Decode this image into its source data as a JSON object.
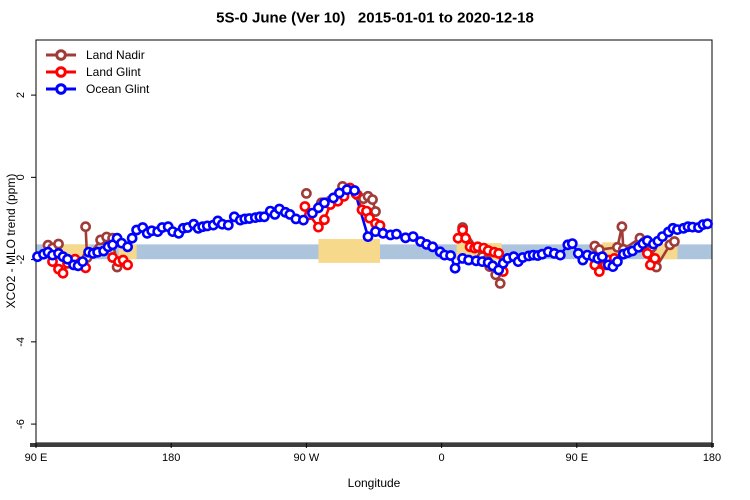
{
  "title": "5S-0 June (Ver 10)   2015-01-01 to 2020-12-18",
  "chart_data": {
    "type": "line",
    "title": "5S-0 June (Ver 10)   2015-01-01 to 2020-12-18",
    "xlabel": "Longitude",
    "ylabel": "XCO2 - MLO trend (ppm)",
    "grid": false,
    "legend_position": "top-left",
    "x_axis": {
      "range": [
        0,
        450
      ],
      "tick_positions": [
        0,
        90,
        180,
        270,
        360,
        450
      ],
      "tick_labels": [
        "90 E",
        "180",
        "90 W",
        "0",
        "90 E",
        "180"
      ],
      "note": "wrapped longitude axis: 90E to 180 to 90W to 0 to 90E to 180"
    },
    "y_axis": {
      "range": [
        -6.46,
        3.34
      ],
      "tick_values": [
        2,
        0,
        -2,
        -4,
        -6
      ],
      "tick_labels": [
        "2",
        "0",
        "-2",
        "-4",
        "-6"
      ]
    },
    "bands": {
      "blue_band": {
        "color": "#ADC4DD",
        "x_from": 0,
        "x_to": 450,
        "y_from": -1.63,
        "y_to": -1.99
      },
      "yellow_color": "#F6D98A",
      "yellow_segments": [
        {
          "x_from": 17,
          "x_to": 36,
          "y_from": -1.63,
          "y_to": -1.99
        },
        {
          "x_from": 55,
          "x_to": 67,
          "y_from": -1.63,
          "y_to": -1.99
        },
        {
          "x_from": 188,
          "x_to": 229,
          "y_from": -1.5,
          "y_to": -2.08
        },
        {
          "x_from": 280,
          "x_to": 310,
          "y_from": -1.6,
          "y_to": -2.02
        },
        {
          "x_from": 377,
          "x_to": 389,
          "y_from": -1.58,
          "y_to": -2.0
        },
        {
          "x_from": 410,
          "x_to": 427,
          "y_from": -1.63,
          "y_to": -1.99
        }
      ]
    },
    "series": [
      {
        "name": "Land Nadir",
        "color": "#A03C38",
        "segments": [
          [
            [
              8,
              -1.65
            ],
            [
              11,
              -1.72
            ],
            [
              15,
              -1.62
            ]
          ],
          [
            [
              33,
              -1.2
            ],
            [
              34,
              -1.95
            ],
            [
              43,
              -1.52
            ],
            [
              47,
              -1.45
            ],
            [
              51,
              -1.48
            ],
            [
              54,
              -2.18
            ]
          ],
          [
            [
              180,
              -0.39
            ]
          ],
          [
            [
              190,
              -0.62
            ],
            [
              196,
              -0.57
            ],
            [
              199,
              -0.49
            ],
            [
              204,
              -0.22
            ],
            [
              214,
              -0.43
            ],
            [
              218,
              -0.52
            ],
            [
              221,
              -0.46
            ],
            [
              224,
              -0.54
            ],
            [
              226,
              -0.83
            ]
          ],
          [
            [
              284,
              -1.22
            ],
            [
              297,
              -1.93
            ],
            [
              300,
              -2.01
            ],
            [
              302,
              -2.17
            ],
            [
              306,
              -2.37
            ],
            [
              309,
              -2.58
            ]
          ],
          [
            [
              372,
              -1.67
            ],
            [
              375,
              -1.76
            ],
            [
              387,
              -1.7
            ],
            [
              390,
              -1.2
            ],
            [
              391,
              -1.75
            ],
            [
              402,
              -1.48
            ],
            [
              405,
              -1.57
            ],
            [
              410,
              -1.7
            ],
            [
              413,
              -2.18
            ],
            [
              422,
              -1.64
            ],
            [
              425,
              -1.56
            ]
          ]
        ]
      },
      {
        "name": "Land Glint",
        "color": "#FF0000",
        "segments": [
          [
            [
              11,
              -2.05
            ],
            [
              15,
              -2.23
            ],
            [
              18,
              -2.33
            ],
            [
              21,
              -2.09
            ],
            [
              26,
              -1.99
            ],
            [
              29,
              -2.09
            ],
            [
              33,
              -2.2
            ]
          ],
          [
            [
              51,
              -1.95
            ],
            [
              55,
              -2.05
            ],
            [
              58,
              -2.01
            ],
            [
              61,
              -2.13
            ]
          ],
          [
            [
              179,
              -0.71
            ],
            [
              182,
              -0.91
            ],
            [
              188,
              -1.21
            ],
            [
              192,
              -1.03
            ],
            [
              196,
              -0.66
            ],
            [
              201,
              -0.58
            ],
            [
              205,
              -0.46
            ],
            [
              209,
              -0.26
            ],
            [
              213,
              -0.4
            ],
            [
              217,
              -0.79
            ],
            [
              220,
              -0.82
            ],
            [
              222,
              -0.99
            ],
            [
              226,
              -1.12
            ],
            [
              229,
              -1.17
            ]
          ],
          [
            [
              281,
              -1.48
            ],
            [
              284,
              -1.28
            ],
            [
              286,
              -1.48
            ],
            [
              289,
              -1.69
            ],
            [
              292,
              -1.72
            ],
            [
              294,
              -1.69
            ],
            [
              298,
              -1.72
            ],
            [
              301,
              -1.78
            ],
            [
              305,
              -1.82
            ],
            [
              308,
              -1.85
            ],
            [
              311,
              -2.29
            ]
          ],
          [
            [
              372,
              -2.13
            ],
            [
              375,
              -2.29
            ],
            [
              379,
              -2.13
            ],
            [
              381,
              -2.01
            ],
            [
              385,
              -1.97
            ]
          ],
          [
            [
              403,
              -1.69
            ],
            [
              407,
              -1.85
            ],
            [
              409,
              -2.13
            ],
            [
              412,
              -1.97
            ]
          ]
        ]
      },
      {
        "name": "Ocean Glint",
        "color": "#0000FF",
        "segments": [
          [
            [
              1,
              -1.93
            ],
            [
              5,
              -1.87
            ],
            [
              8,
              -1.82
            ],
            [
              11,
              -1.89
            ],
            [
              15,
              -1.85
            ],
            [
              18,
              -1.93
            ],
            [
              21,
              -1.99
            ],
            [
              25,
              -2.13
            ],
            [
              28,
              -2.15
            ],
            [
              31,
              -2.05
            ],
            [
              35,
              -1.82
            ],
            [
              38,
              -1.85
            ],
            [
              41,
              -1.82
            ],
            [
              45,
              -1.79
            ],
            [
              48,
              -1.69
            ],
            [
              51,
              -1.64
            ],
            [
              54,
              -1.48
            ],
            [
              57,
              -1.6
            ],
            [
              61,
              -1.69
            ],
            [
              64,
              -1.48
            ],
            [
              67,
              -1.28
            ],
            [
              71,
              -1.22
            ],
            [
              74,
              -1.36
            ],
            [
              77,
              -1.3
            ],
            [
              81,
              -1.32
            ],
            [
              84,
              -1.22
            ],
            [
              88,
              -1.2
            ],
            [
              91,
              -1.32
            ],
            [
              95,
              -1.36
            ],
            [
              98,
              -1.24
            ],
            [
              101,
              -1.22
            ],
            [
              105,
              -1.14
            ],
            [
              108,
              -1.24
            ],
            [
              111,
              -1.2
            ],
            [
              114,
              -1.18
            ],
            [
              118,
              -1.16
            ],
            [
              121,
              -1.06
            ],
            [
              124,
              -1.14
            ],
            [
              128,
              -1.16
            ],
            [
              132,
              -0.96
            ],
            [
              136,
              -1.04
            ],
            [
              139,
              -1.01
            ],
            [
              142,
              -1.0
            ],
            [
              146,
              -0.98
            ],
            [
              149,
              -0.96
            ],
            [
              152,
              -0.96
            ],
            [
              156,
              -0.82
            ],
            [
              159,
              -0.9
            ],
            [
              162,
              -0.77
            ],
            [
              166,
              -0.85
            ],
            [
              169,
              -0.9
            ],
            [
              173,
              -1.01
            ],
            [
              178,
              -1.04
            ],
            [
              184,
              -0.87
            ],
            [
              188,
              -0.74
            ],
            [
              192,
              -0.62
            ],
            [
              198,
              -0.5
            ],
            [
              202,
              -0.38
            ],
            [
              207,
              -0.3
            ],
            [
              212,
              -0.32
            ],
            [
              221,
              -1.44
            ],
            [
              226,
              -1.32
            ],
            [
              231,
              -1.36
            ],
            [
              236,
              -1.4
            ],
            [
              240,
              -1.38
            ],
            [
              246,
              -1.47
            ],
            [
              251,
              -1.44
            ],
            [
              256,
              -1.56
            ],
            [
              260,
              -1.63
            ],
            [
              264,
              -1.69
            ],
            [
              269,
              -1.81
            ],
            [
              272,
              -1.89
            ],
            [
              276,
              -1.9
            ],
            [
              279,
              -2.21
            ],
            [
              284,
              -1.97
            ],
            [
              288,
              -2.01
            ],
            [
              293,
              -2.03
            ],
            [
              297,
              -2.05
            ],
            [
              301,
              -2.07
            ],
            [
              304,
              -2.15
            ],
            [
              308,
              -2.25
            ],
            [
              311,
              -2.09
            ],
            [
              314,
              -1.97
            ],
            [
              318,
              -1.93
            ],
            [
              321,
              -2.05
            ],
            [
              324,
              -1.95
            ],
            [
              328,
              -1.91
            ],
            [
              331,
              -1.89
            ],
            [
              334,
              -1.9
            ],
            [
              337,
              -1.87
            ],
            [
              341,
              -1.81
            ],
            [
              345,
              -1.85
            ],
            [
              349,
              -1.89
            ],
            [
              354,
              -1.64
            ],
            [
              357,
              -1.61
            ],
            [
              361,
              -1.85
            ],
            [
              364,
              -2.01
            ],
            [
              367,
              -1.89
            ],
            [
              371,
              -1.93
            ],
            [
              374,
              -1.97
            ],
            [
              377,
              -1.93
            ],
            [
              381,
              -2.13
            ],
            [
              384,
              -2.17
            ],
            [
              387,
              -2.05
            ],
            [
              391,
              -1.87
            ],
            [
              394,
              -1.83
            ],
            [
              397,
              -1.79
            ],
            [
              401,
              -1.7
            ],
            [
              404,
              -1.61
            ],
            [
              407,
              -1.54
            ],
            [
              411,
              -1.62
            ],
            [
              414,
              -1.55
            ],
            [
              417,
              -1.44
            ],
            [
              421,
              -1.33
            ],
            [
              424,
              -1.24
            ],
            [
              427,
              -1.27
            ],
            [
              431,
              -1.24
            ],
            [
              434,
              -1.2
            ],
            [
              437,
              -1.21
            ],
            [
              441,
              -1.22
            ],
            [
              444,
              -1.15
            ],
            [
              447,
              -1.13
            ]
          ]
        ]
      }
    ]
  }
}
